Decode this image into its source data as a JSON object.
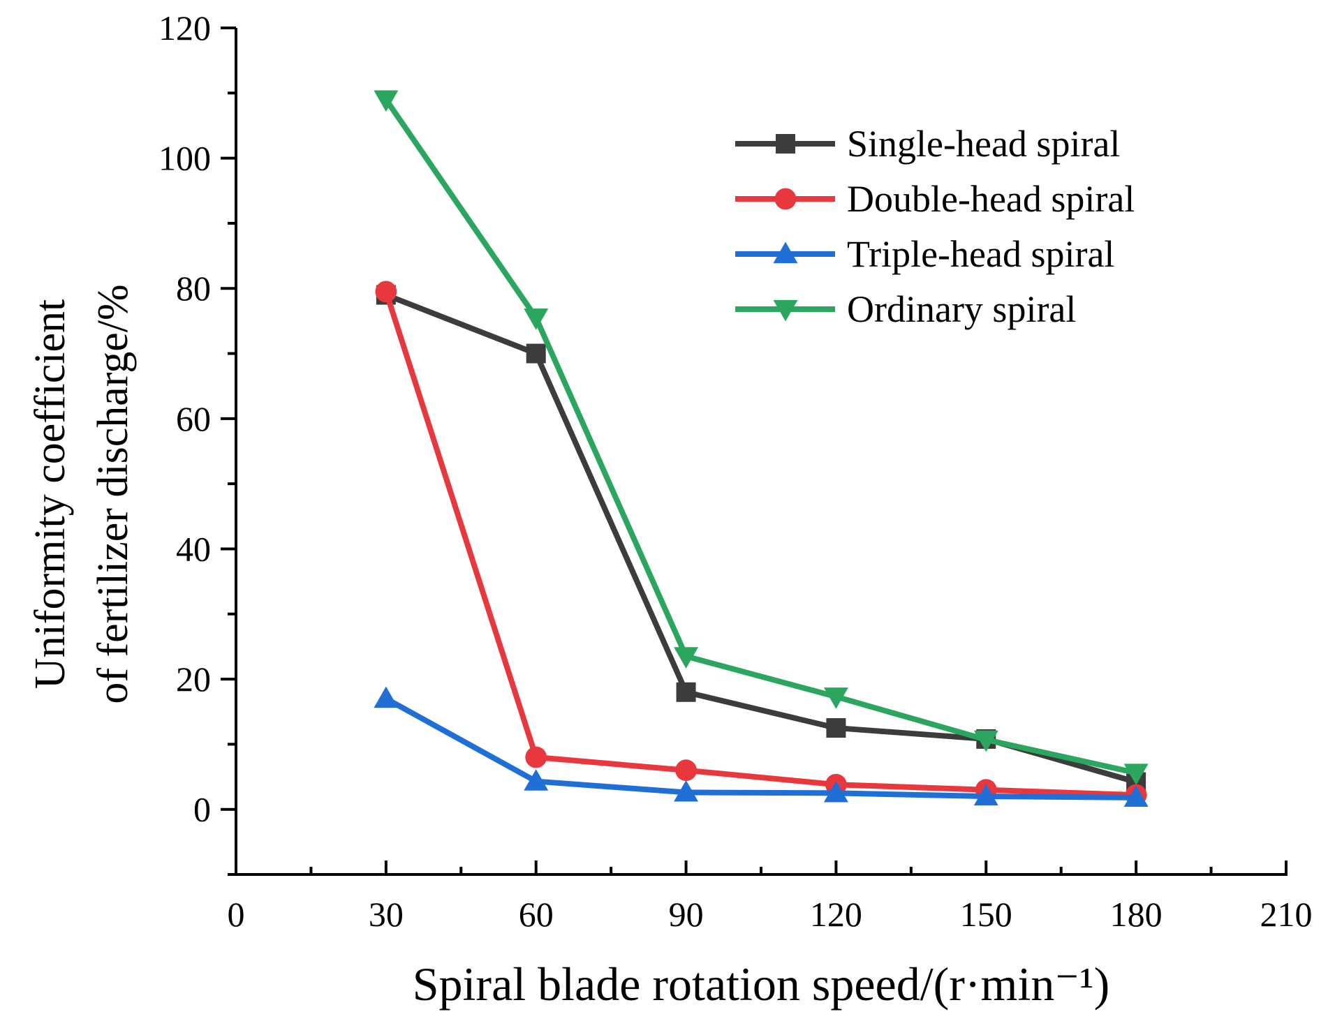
{
  "chart_data": {
    "type": "line",
    "xlabel": "Spiral blade rotation speed/(r·min⁻¹)",
    "ylabel_lines": [
      "Uniformity coefficient",
      "of fertilizer discharge/%"
    ],
    "xlim": [
      0,
      210
    ],
    "ylim": [
      -10,
      120
    ],
    "x_ticks": [
      0,
      30,
      60,
      90,
      120,
      150,
      180,
      210
    ],
    "x_tick_labels": [
      "0",
      "30",
      "60",
      "90",
      "120",
      "150",
      "180",
      "210"
    ],
    "y_ticks": [
      0,
      20,
      40,
      60,
      80,
      100,
      120
    ],
    "y_tick_labels": [
      "0",
      "20",
      "40",
      "60",
      "80",
      "100",
      "120"
    ],
    "x": [
      30,
      60,
      90,
      120,
      150,
      180
    ],
    "legend_position": "top-right",
    "series": [
      {
        "name": "Single-head spiral",
        "color": "#3c3c3c",
        "marker": "square",
        "values": [
          79,
          70,
          18,
          12.5,
          10.8,
          4.2
        ]
      },
      {
        "name": "Double-head spiral",
        "color": "#e8383d",
        "marker": "circle",
        "values": [
          79.5,
          8,
          6,
          3.8,
          3,
          2.2
        ]
      },
      {
        "name": "Triple-head spiral",
        "color": "#1f6fd6",
        "marker": "triangle-up",
        "values": [
          17,
          4.3,
          2.6,
          2.5,
          2,
          1.8
        ]
      },
      {
        "name": "Ordinary spiral",
        "color": "#2aa65e",
        "marker": "triangle-down",
        "values": [
          109,
          75.5,
          23.5,
          17.3,
          10.7,
          5.6
        ]
      }
    ]
  }
}
